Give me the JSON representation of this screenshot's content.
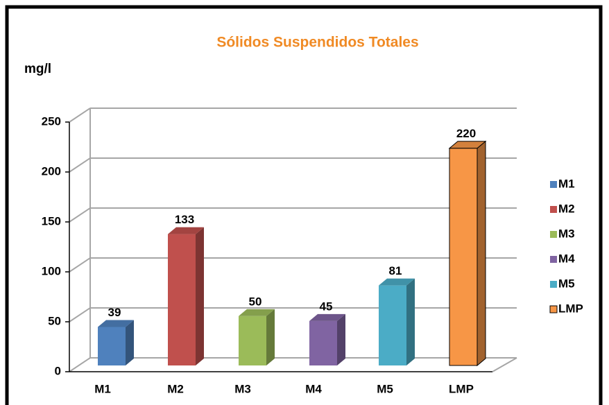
{
  "chart_data": {
    "type": "bar3d",
    "title": "Sólidos Suspendidos Totales",
    "y_label": "mg/l",
    "categories": [
      "M1",
      "M2",
      "M3",
      "M4",
      "M5",
      "LMP"
    ],
    "values": [
      39,
      133,
      50,
      45,
      81,
      220
    ],
    "colors": [
      "#4f81bd",
      "#c0504d",
      "#9bbb59",
      "#8064a2",
      "#4bacc6",
      "#f79646"
    ],
    "ylim": [
      0,
      250
    ],
    "yticks": [
      0,
      50,
      100,
      150,
      200,
      250
    ],
    "grid": true,
    "legend": "right"
  }
}
